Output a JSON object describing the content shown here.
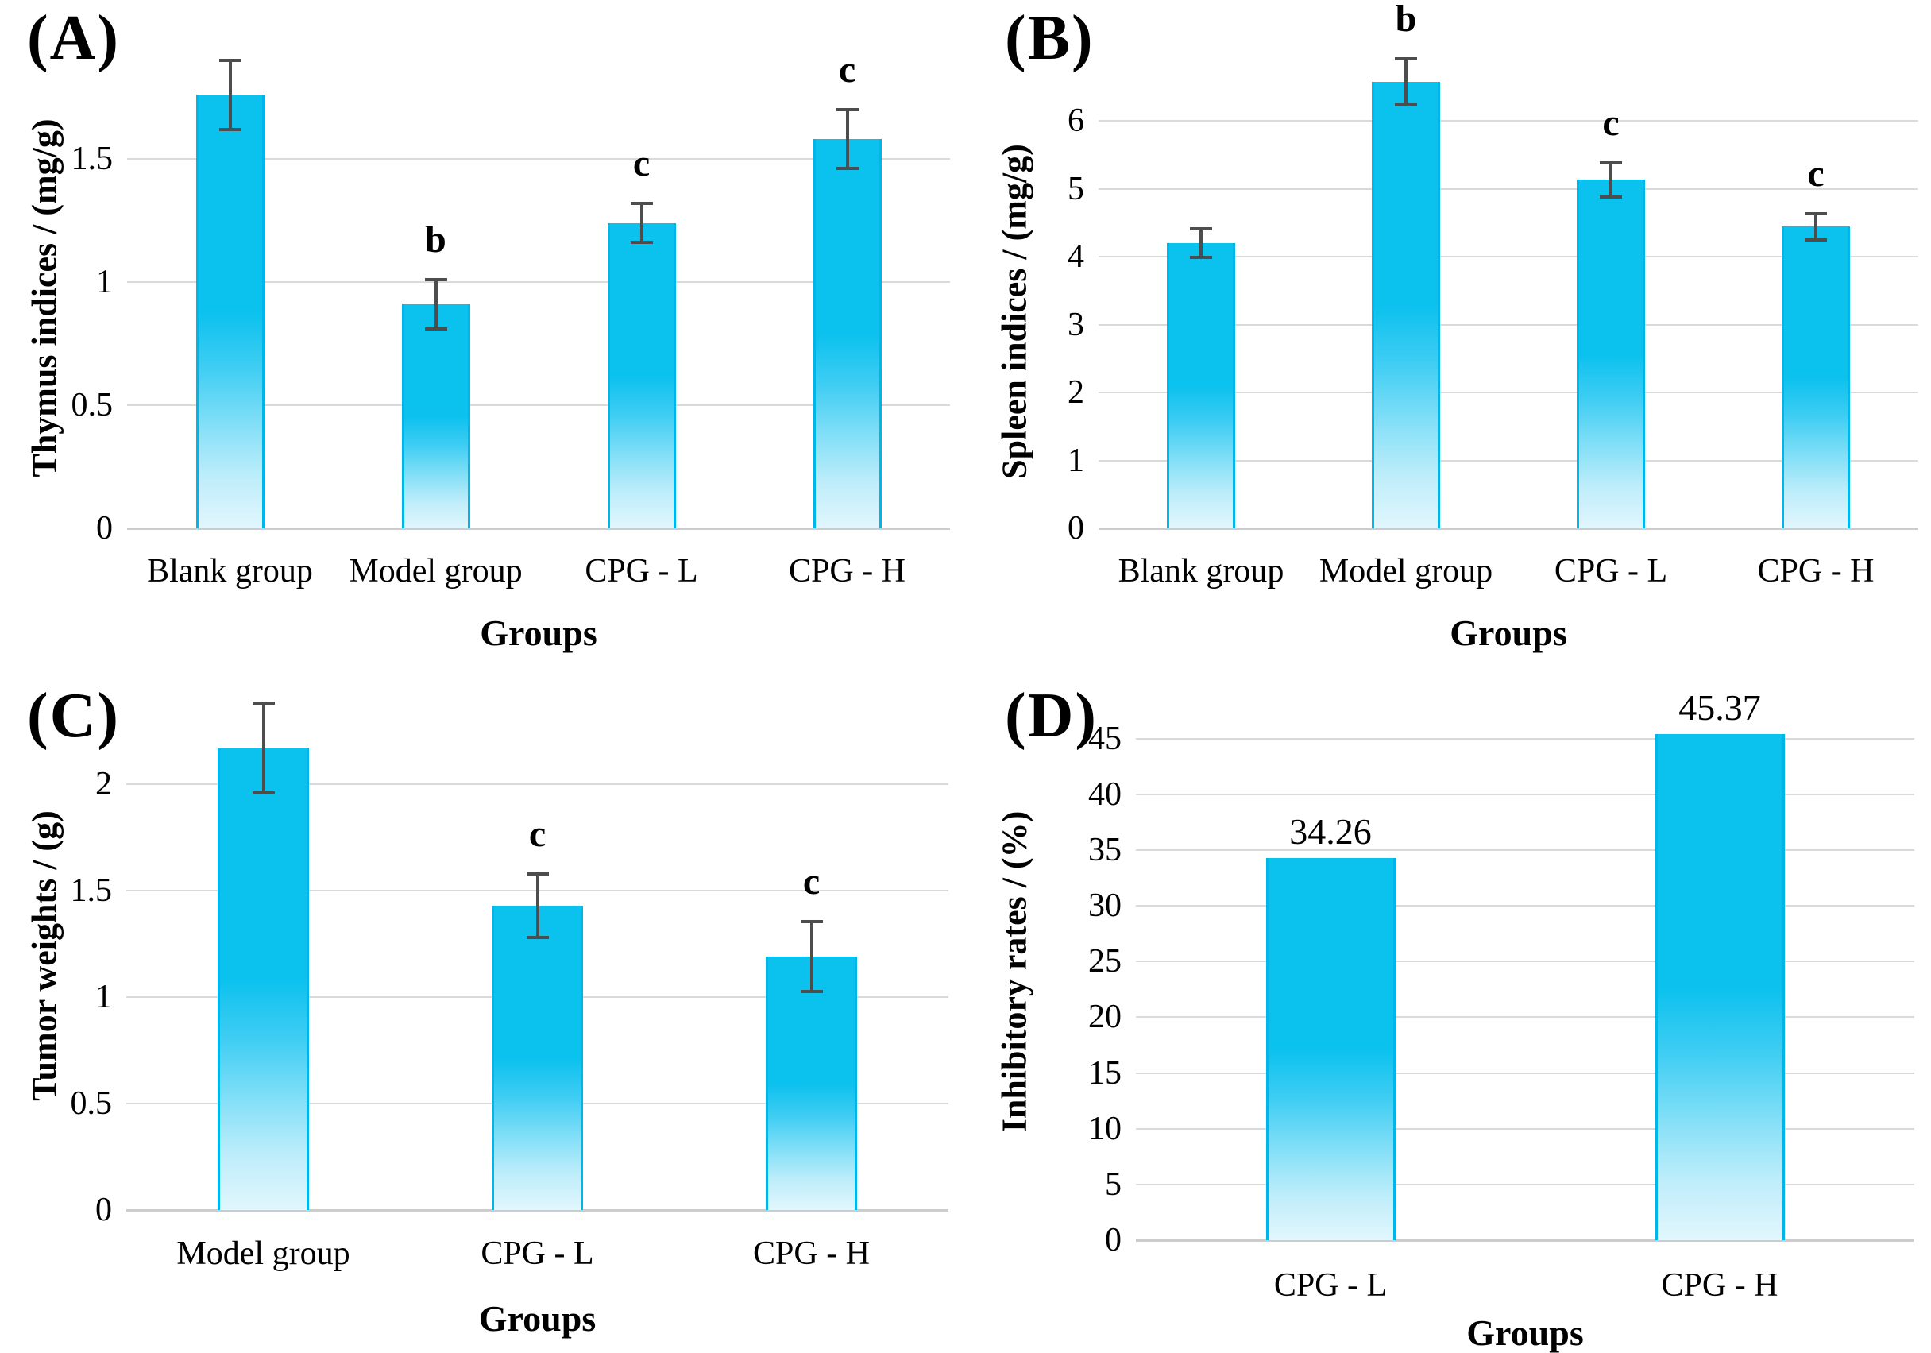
{
  "figure_title": "",
  "colors": {
    "bar_top": "#0bc1ee",
    "bar_bottom": "#e2f6fd",
    "bar_border": "#00b5e8",
    "error_bar": "#4d4d4d",
    "gridline": "#dadada",
    "text": "#000000"
  },
  "chart_data": [
    {
      "type": "bar",
      "panel": "(A)",
      "ylabel": "Thymus indices / (mg/g)",
      "xlabel": "Groups",
      "categories": [
        "Blank group",
        "Model group",
        "CPG - L",
        "CPG - H"
      ],
      "values": [
        1.76,
        0.91,
        1.24,
        1.58
      ],
      "errors": [
        0.14,
        0.1,
        0.08,
        0.12
      ],
      "sig_letters": [
        "",
        "b",
        "c",
        "c"
      ],
      "value_labels": [],
      "yticks": [
        "0",
        "0.5",
        "1",
        "1.5"
      ],
      "ylim": [
        0,
        2.05
      ],
      "grid": true,
      "legend": false
    },
    {
      "type": "bar",
      "panel": "(B)",
      "ylabel": "Spleen indices / (mg/g)",
      "xlabel": "Groups",
      "categories": [
        "Blank group",
        "Model group",
        "CPG - L",
        "CPG - H"
      ],
      "values": [
        4.2,
        6.57,
        5.13,
        4.44
      ],
      "errors": [
        0.21,
        0.34,
        0.25,
        0.19
      ],
      "sig_letters": [
        "",
        "b",
        "c",
        "c"
      ],
      "value_labels": [],
      "yticks": [
        "0",
        "1",
        "2",
        "3",
        "4",
        "5",
        "6"
      ],
      "ylim": [
        0,
        7.4
      ],
      "grid": true,
      "legend": false
    },
    {
      "type": "bar",
      "panel": "(C)",
      "ylabel": "Tumor weights / (g)",
      "xlabel": "Groups",
      "categories": [
        "Model group",
        "CPG - L",
        "CPG - H"
      ],
      "values": [
        2.17,
        1.43,
        1.19
      ],
      "errors": [
        0.21,
        0.15,
        0.165
      ],
      "sig_letters": [
        "",
        "c",
        "c"
      ],
      "value_labels": [],
      "yticks": [
        "0",
        "0.5",
        "1",
        "1.5",
        "2"
      ],
      "ylim": [
        0,
        2.5
      ],
      "grid": true,
      "legend": false
    },
    {
      "type": "bar",
      "panel": "(D)",
      "ylabel": "Inhibitory rates  / (%)",
      "xlabel": "Groups",
      "categories": [
        "CPG - L",
        "CPG - H"
      ],
      "values": [
        34.26,
        45.37
      ],
      "errors": null,
      "sig_letters": [
        "",
        ""
      ],
      "value_labels": [
        "34.26",
        "45.37"
      ],
      "yticks": [
        "0",
        "5",
        "10",
        "15",
        "20",
        "25",
        "30",
        "35",
        "40",
        "45"
      ],
      "ylim": [
        0,
        50
      ],
      "grid": true,
      "legend": false
    }
  ]
}
